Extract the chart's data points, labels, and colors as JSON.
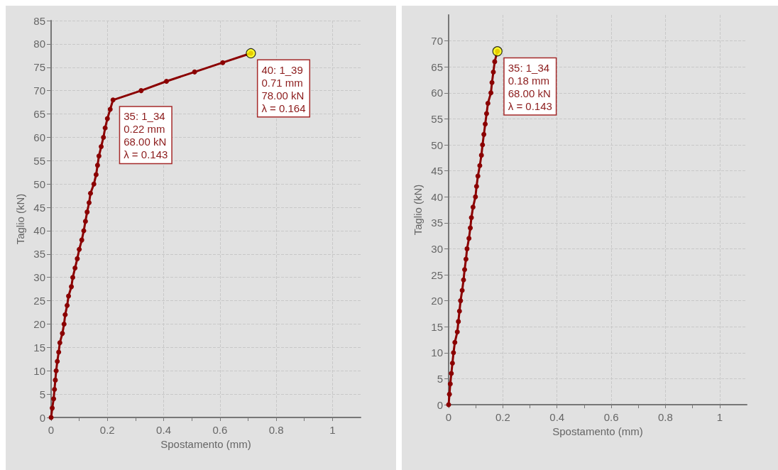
{
  "chart_data": [
    {
      "type": "line",
      "xlabel": "Spostamento (mm)",
      "ylabel": "Taglio (kN)",
      "xlim": [
        0,
        1.1
      ],
      "xticks": [
        0,
        0.2,
        0.4,
        0.6,
        0.8,
        1
      ],
      "ylim": [
        0,
        85
      ],
      "yticks": [
        0,
        5,
        10,
        15,
        20,
        25,
        30,
        35,
        40,
        45,
        50,
        55,
        60,
        65,
        70,
        75,
        80,
        85
      ],
      "grid": true,
      "marker": "circle",
      "line_style": "solid",
      "series": [
        {
          "color": "#8b0000",
          "x": [
            0,
            0.004,
            0.009,
            0.012,
            0.015,
            0.018,
            0.022,
            0.027,
            0.031,
            0.04,
            0.046,
            0.05,
            0.057,
            0.062,
            0.072,
            0.077,
            0.085,
            0.093,
            0.1,
            0.109,
            0.116,
            0.122,
            0.128,
            0.135,
            0.14,
            0.152,
            0.16,
            0.165,
            0.17,
            0.178,
            0.186,
            0.192,
            0.2,
            0.21,
            0.22,
            0.32,
            0.41,
            0.51,
            0.61,
            0.71
          ],
          "values": [
            0,
            2,
            4,
            6,
            8,
            10,
            12,
            14,
            16,
            18,
            20,
            22,
            24,
            26,
            28,
            30,
            32,
            34,
            36,
            38,
            40,
            42,
            44,
            46,
            48,
            50,
            52,
            54,
            56,
            58,
            60,
            62,
            64,
            66,
            68,
            70,
            72,
            74,
            76,
            78
          ]
        },
        {
          "type": "scatter",
          "color": "#ffff00",
          "x": [
            0.71
          ],
          "values": [
            78
          ]
        }
      ],
      "annotations": [
        {
          "text": "35: 1_34\n0.22 mm\n68.00 kN\nλ = 0.143",
          "x": 0.22,
          "y": 68
        },
        {
          "text": "40: 1_39\n0.71 mm\n78.00 kN\nλ = 0.164",
          "x": 0.71,
          "y": 78
        }
      ]
    },
    {
      "type": "line",
      "xlabel": "Spostamento (mm)",
      "ylabel": "Taglio (kN)",
      "xlim": [
        0,
        1.1
      ],
      "xticks": [
        0,
        0.2,
        0.4,
        0.6,
        0.8,
        1
      ],
      "ylim": [
        0,
        75
      ],
      "yticks": [
        0,
        5,
        10,
        15,
        20,
        25,
        30,
        35,
        40,
        45,
        50,
        55,
        60,
        65,
        70
      ],
      "grid": true,
      "marker": "circle",
      "line_style": "solid",
      "series": [
        {
          "color": "#8b0000",
          "x": [
            0,
            0.003,
            0.006,
            0.01,
            0.014,
            0.018,
            0.023,
            0.032,
            0.036,
            0.04,
            0.044,
            0.05,
            0.055,
            0.059,
            0.064,
            0.068,
            0.075,
            0.08,
            0.084,
            0.09,
            0.099,
            0.103,
            0.108,
            0.115,
            0.121,
            0.125,
            0.13,
            0.135,
            0.14,
            0.145,
            0.156,
            0.16,
            0.165,
            0.17,
            0.18
          ],
          "values": [
            0,
            2,
            4,
            6,
            8,
            10,
            12,
            14,
            16,
            18,
            20,
            22,
            24,
            26,
            28,
            30,
            32,
            34,
            36,
            38,
            40,
            42,
            44,
            46,
            48,
            50,
            52,
            54,
            56,
            58,
            60,
            62,
            64,
            66,
            68
          ]
        },
        {
          "type": "scatter",
          "color": "#ffff00",
          "x": [
            0.18
          ],
          "values": [
            68
          ]
        }
      ],
      "annotations": [
        {
          "text": "35: 1_34\n0.18 mm\n68.00 kN\nλ = 0.143",
          "x": 0.18,
          "y": 68
        }
      ]
    }
  ]
}
